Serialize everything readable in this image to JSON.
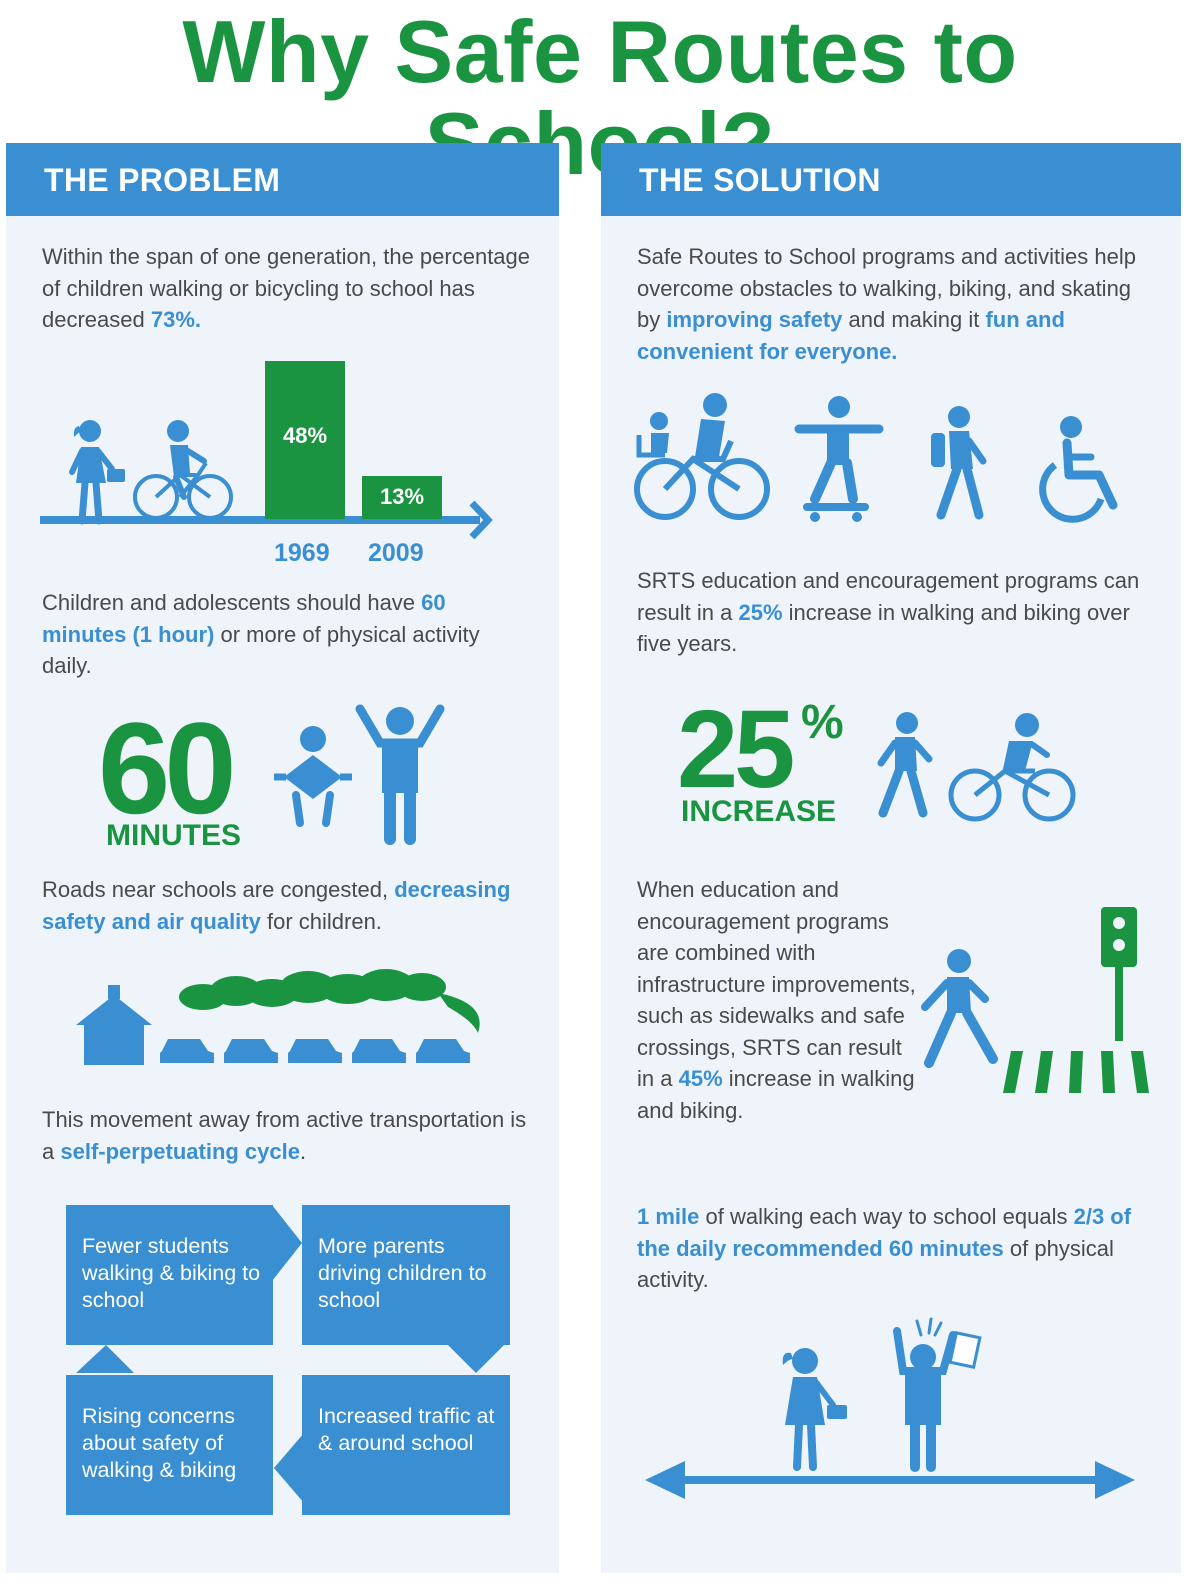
{
  "title": "Why Safe Routes to School?",
  "colors": {
    "green": "#1a9440",
    "blue": "#3a8fd2",
    "panel": "#eef4fa",
    "text": "#4a4a4a"
  },
  "problem": {
    "header": "THE PROBLEM",
    "p1": {
      "a": "Within the span of one generation, the percentage of children walking or bicycling to school has decreased ",
      "b": "73%."
    },
    "chart": {
      "bars": [
        {
          "year": "1969",
          "label": "48%",
          "value": 48
        },
        {
          "year": "2009",
          "label": "13%",
          "value": 13
        }
      ]
    },
    "p2": {
      "a": "Children and adolescents should have ",
      "b": "60 minutes (1 hour)",
      "c": " or more of physical activity daily."
    },
    "minutes": {
      "number": "60",
      "label": "MINUTES"
    },
    "p3": {
      "a": "Roads near schools are congested, ",
      "b": "decreasing safety and air quality",
      "c": " for children."
    },
    "p4": {
      "a": "This movement away from active transportation is a ",
      "b": "self-perpetuating cycle",
      "c": "."
    },
    "cycle": [
      "Fewer students walking & biking to school",
      "More parents driving children to school",
      "Increased traffic at & around school",
      "Rising concerns about safety of walking & biking"
    ]
  },
  "solution": {
    "header": "THE SOLUTION",
    "p1": {
      "a": "Safe Routes to School programs and activities help overcome obstacles to walking, biking, and skating by ",
      "b": "improving safety",
      "c": " and making it ",
      "d": "fun and convenient for everyone."
    },
    "icons": [
      "bicycle-with-child-icon",
      "skateboarder-icon",
      "walker-icon",
      "wheelchair-icon"
    ],
    "p2": {
      "a": "SRTS education and encouragement programs can result in a ",
      "b": "25%",
      "c": " increase in walking and biking over five years."
    },
    "increase": {
      "number": "25",
      "percent": "%",
      "label": "INCREASE"
    },
    "p3": {
      "a": "When education and encouragement programs are combined with infrastructure improvements, such as sidewalks and safe crossings, SRTS can result in a ",
      "b": "45%",
      "c": " increase in walking and biking."
    },
    "p4": {
      "a": "1 mile",
      "b": " of walking each way to school equals ",
      "c": "2/3 of the daily recommended 60 minutes",
      "d": " of physical activity."
    }
  }
}
